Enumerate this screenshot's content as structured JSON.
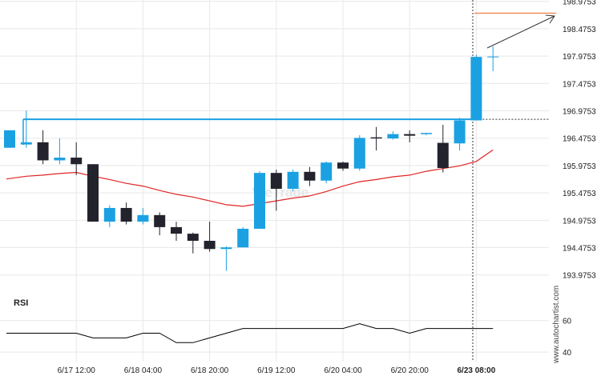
{
  "watermark": "WeTrade",
  "credit": "www.autochartist.com",
  "colors": {
    "bull": "#1ba1e2",
    "bear": "#23232d",
    "level": "#1ba1e2",
    "ma": "#e02424",
    "target": "#f07837",
    "rsi": "#000000",
    "grid": "#e8e8e8"
  },
  "chart_data": {
    "type": "candlestick",
    "price_axis": {
      "ylim": [
        193.65,
        199.0
      ],
      "tick_labels": [
        "198.9753",
        "198.4753",
        "197.9753",
        "197.4753",
        "196.9753",
        "196.4753",
        "195.9753",
        "195.4753",
        "194.9753",
        "194.4753",
        "193.9753"
      ]
    },
    "x_axis": {
      "tick_labels": [
        "6/17 12:00",
        "6/18 04:00",
        "6/18 20:00",
        "6/19 12:00",
        "6/20 04:00",
        "6/20 20:00",
        "6/23 08:00"
      ],
      "tick_candle_index": [
        4,
        8,
        12,
        16,
        20,
        24,
        28
      ],
      "highlight_label": "6/23 08:00"
    },
    "candles": [
      {
        "o": 196.3,
        "h": 196.62,
        "l": 196.3,
        "c": 196.62
      },
      {
        "o": 196.36,
        "h": 196.98,
        "l": 196.3,
        "c": 196.4
      },
      {
        "o": 196.4,
        "h": 196.62,
        "l": 196.0,
        "c": 196.07
      },
      {
        "o": 196.07,
        "h": 196.47,
        "l": 196.0,
        "c": 196.12
      },
      {
        "o": 196.12,
        "h": 196.4,
        "l": 195.8,
        "c": 196.0
      },
      {
        "o": 196.0,
        "h": 196.0,
        "l": 194.95,
        "c": 194.95
      },
      {
        "o": 194.95,
        "h": 195.25,
        "l": 194.85,
        "c": 195.2
      },
      {
        "o": 195.2,
        "h": 195.3,
        "l": 194.9,
        "c": 194.95
      },
      {
        "o": 194.95,
        "h": 195.2,
        "l": 194.9,
        "c": 195.07
      },
      {
        "o": 195.07,
        "h": 195.12,
        "l": 194.7,
        "c": 194.85
      },
      {
        "o": 194.85,
        "h": 194.95,
        "l": 194.6,
        "c": 194.73
      },
      {
        "o": 194.73,
        "h": 194.75,
        "l": 194.37,
        "c": 194.6
      },
      {
        "o": 194.6,
        "h": 194.95,
        "l": 194.4,
        "c": 194.45
      },
      {
        "o": 194.45,
        "h": 194.5,
        "l": 194.05,
        "c": 194.48
      },
      {
        "o": 194.48,
        "h": 194.85,
        "l": 194.48,
        "c": 194.82
      },
      {
        "o": 194.82,
        "h": 195.87,
        "l": 194.82,
        "c": 195.84
      },
      {
        "o": 195.84,
        "h": 195.9,
        "l": 195.15,
        "c": 195.55
      },
      {
        "o": 195.55,
        "h": 195.9,
        "l": 195.5,
        "c": 195.86
      },
      {
        "o": 195.86,
        "h": 195.95,
        "l": 195.6,
        "c": 195.7
      },
      {
        "o": 195.7,
        "h": 196.05,
        "l": 195.65,
        "c": 196.03
      },
      {
        "o": 196.03,
        "h": 196.05,
        "l": 195.88,
        "c": 195.92
      },
      {
        "o": 195.92,
        "h": 196.53,
        "l": 195.88,
        "c": 196.48
      },
      {
        "o": 196.48,
        "h": 196.68,
        "l": 196.25,
        "c": 196.47
      },
      {
        "o": 196.47,
        "h": 196.6,
        "l": 196.45,
        "c": 196.55
      },
      {
        "o": 196.55,
        "h": 196.62,
        "l": 196.4,
        "c": 196.52
      },
      {
        "o": 196.55,
        "h": 196.57,
        "l": 196.53,
        "c": 196.56
      },
      {
        "o": 196.39,
        "h": 196.72,
        "l": 195.85,
        "c": 195.93
      },
      {
        "o": 196.38,
        "h": 196.85,
        "l": 196.25,
        "c": 196.8
      },
      {
        "o": 196.8,
        "h": 198.0,
        "l": 196.8,
        "c": 197.96
      },
      {
        "o": 197.96,
        "h": 198.15,
        "l": 197.7,
        "c": 197.96
      }
    ],
    "support_level": 196.82,
    "target_level": 198.76,
    "moving_average": [
      195.73,
      195.78,
      195.8,
      195.83,
      195.85,
      195.78,
      195.72,
      195.65,
      195.6,
      195.52,
      195.45,
      195.4,
      195.33,
      195.26,
      195.23,
      195.28,
      195.33,
      195.38,
      195.42,
      195.5,
      195.6,
      195.68,
      195.72,
      195.77,
      195.8,
      195.87,
      195.92,
      195.97,
      196.05,
      196.26
    ],
    "rsi": {
      "label": "RSI",
      "ylim": [
        35,
        70
      ],
      "tick_labels": [
        "60",
        "40"
      ],
      "tick_values": [
        60,
        40
      ],
      "values": [
        52,
        52,
        52,
        52,
        52,
        49,
        49,
        49,
        52,
        52,
        46,
        46,
        49,
        52,
        55,
        55,
        55,
        55,
        55,
        55,
        55,
        58,
        55,
        55,
        52,
        55,
        55,
        55,
        55,
        55
      ]
    }
  }
}
